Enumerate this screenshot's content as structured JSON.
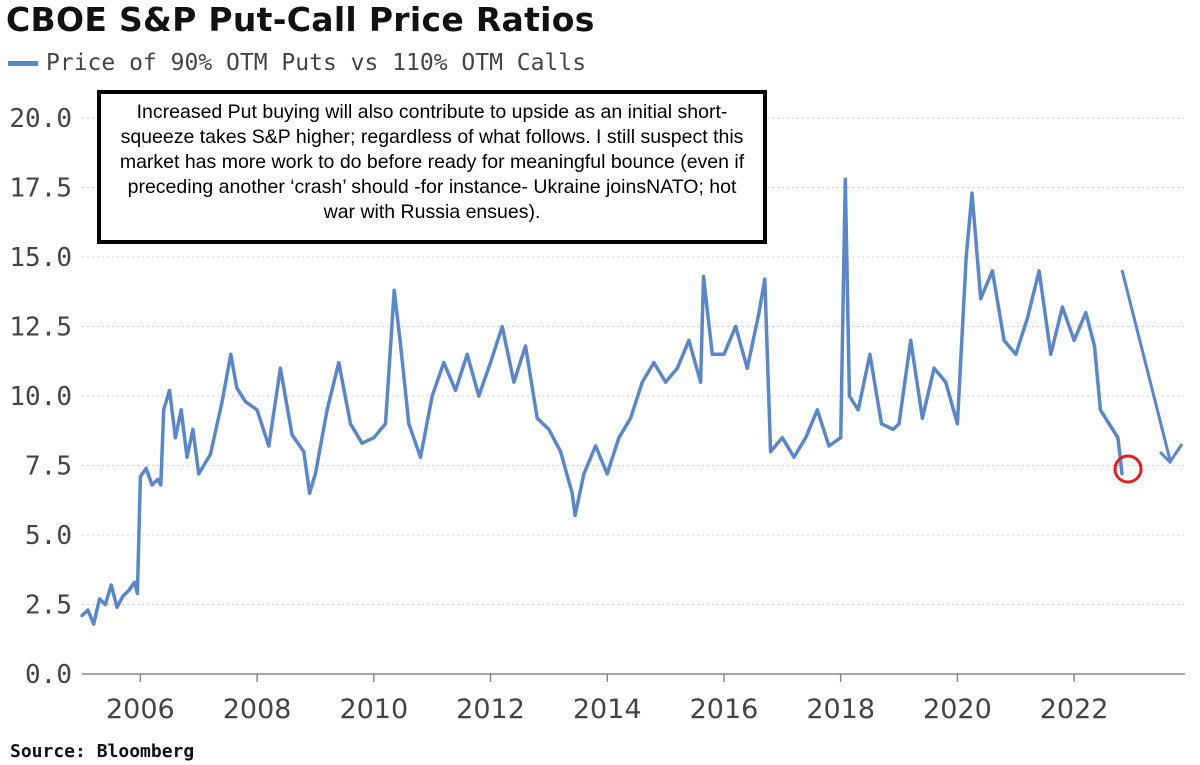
{
  "title": "CBOE S&P Put-Call Price Ratios",
  "source": "Source: Bloomberg",
  "annotation": "Increased Put buying will also contribute to upside as an initial short-squeeze takes S&P higher; regardless of what follows. I still suspect this market has more work to do before ready for meaningful bounce (even if preceding another ‘crash’ should -for instance- Ukraine joinsNATO; hot war with Russia ensues).",
  "colors": {
    "line": "#5b87c7",
    "highlight_circle": "#e02020",
    "arrow": "#5b87c7"
  },
  "chart_data": {
    "type": "line",
    "title": "CBOE S&P Put-Call Price Ratios",
    "xlabel": "",
    "ylabel": "",
    "xlim": [
      2005.0,
      2023.9
    ],
    "ylim": [
      0,
      20
    ],
    "x_ticks": [
      2006,
      2008,
      2010,
      2012,
      2014,
      2016,
      2018,
      2020,
      2022
    ],
    "x_tick_labels": [
      "2006",
      "2008",
      "2010",
      "2012",
      "2014",
      "2016",
      "2018",
      "2020",
      "2022"
    ],
    "y_ticks": [
      0,
      2.5,
      5,
      7.5,
      10,
      12.5,
      15,
      17.5,
      20
    ],
    "y_tick_labels": [
      "0.0",
      "2.5",
      "5.0",
      "7.5",
      "10.0",
      "12.5",
      "15.0",
      "17.5",
      "20.0"
    ],
    "grid": "horizontal dotted",
    "legend_placement": "top-left",
    "series": [
      {
        "name": "Price of 90% OTM Puts vs 110% OTM Calls",
        "x": [
          2005.0,
          2005.1,
          2005.2,
          2005.3,
          2005.4,
          2005.5,
          2005.6,
          2005.7,
          2005.8,
          2005.9,
          2005.95,
          2006.0,
          2006.1,
          2006.2,
          2006.3,
          2006.35,
          2006.4,
          2006.5,
          2006.6,
          2006.7,
          2006.8,
          2006.9,
          2007.0,
          2007.2,
          2007.4,
          2007.55,
          2007.65,
          2007.8,
          2008.0,
          2008.2,
          2008.4,
          2008.6,
          2008.8,
          2008.9,
          2009.0,
          2009.2,
          2009.4,
          2009.6,
          2009.8,
          2010.0,
          2010.2,
          2010.35,
          2010.45,
          2010.6,
          2010.8,
          2011.0,
          2011.2,
          2011.4,
          2011.6,
          2011.8,
          2012.0,
          2012.2,
          2012.4,
          2012.6,
          2012.8,
          2013.0,
          2013.2,
          2013.4,
          2013.45,
          2013.6,
          2013.8,
          2014.0,
          2014.2,
          2014.4,
          2014.6,
          2014.8,
          2015.0,
          2015.2,
          2015.4,
          2015.6,
          2015.65,
          2015.8,
          2016.0,
          2016.2,
          2016.4,
          2016.6,
          2016.7,
          2016.8,
          2017.0,
          2017.2,
          2017.4,
          2017.6,
          2017.8,
          2018.0,
          2018.08,
          2018.15,
          2018.3,
          2018.5,
          2018.7,
          2018.9,
          2019.0,
          2019.2,
          2019.4,
          2019.6,
          2019.8,
          2020.0,
          2020.15,
          2020.25,
          2020.4,
          2020.6,
          2020.8,
          2021.0,
          2021.2,
          2021.4,
          2021.6,
          2021.8,
          2022.0,
          2022.2,
          2022.35,
          2022.45,
          2022.6,
          2022.75,
          2022.82
        ],
        "values": [
          2.1,
          2.3,
          1.8,
          2.7,
          2.5,
          3.2,
          2.4,
          2.8,
          3.0,
          3.3,
          2.9,
          7.1,
          7.4,
          6.8,
          7.0,
          6.8,
          9.5,
          10.2,
          8.5,
          9.5,
          7.8,
          8.8,
          7.2,
          7.9,
          9.8,
          11.5,
          10.3,
          9.8,
          9.5,
          8.2,
          11.0,
          8.6,
          8.0,
          6.5,
          7.2,
          9.5,
          11.2,
          9.0,
          8.3,
          8.5,
          9.0,
          13.8,
          12.0,
          9.0,
          7.8,
          10.0,
          11.2,
          10.2,
          11.5,
          10.0,
          11.2,
          12.5,
          10.5,
          11.8,
          9.2,
          8.8,
          8.0,
          6.5,
          5.7,
          7.2,
          8.2,
          7.2,
          8.5,
          9.2,
          10.5,
          11.2,
          10.5,
          11.0,
          12.0,
          10.5,
          14.3,
          11.5,
          11.5,
          12.5,
          11.0,
          13.0,
          14.2,
          8.0,
          8.5,
          7.8,
          8.5,
          9.5,
          8.2,
          8.5,
          17.8,
          10.0,
          9.5,
          11.5,
          9.0,
          8.8,
          9.0,
          12.0,
          9.2,
          11.0,
          10.5,
          9.0,
          15.0,
          17.3,
          13.5,
          14.5,
          12.0,
          11.5,
          12.8,
          14.5,
          11.5,
          13.2,
          12.0,
          13.0,
          11.8,
          9.5,
          9.0,
          8.5,
          7.2
        ]
      }
    ]
  }
}
